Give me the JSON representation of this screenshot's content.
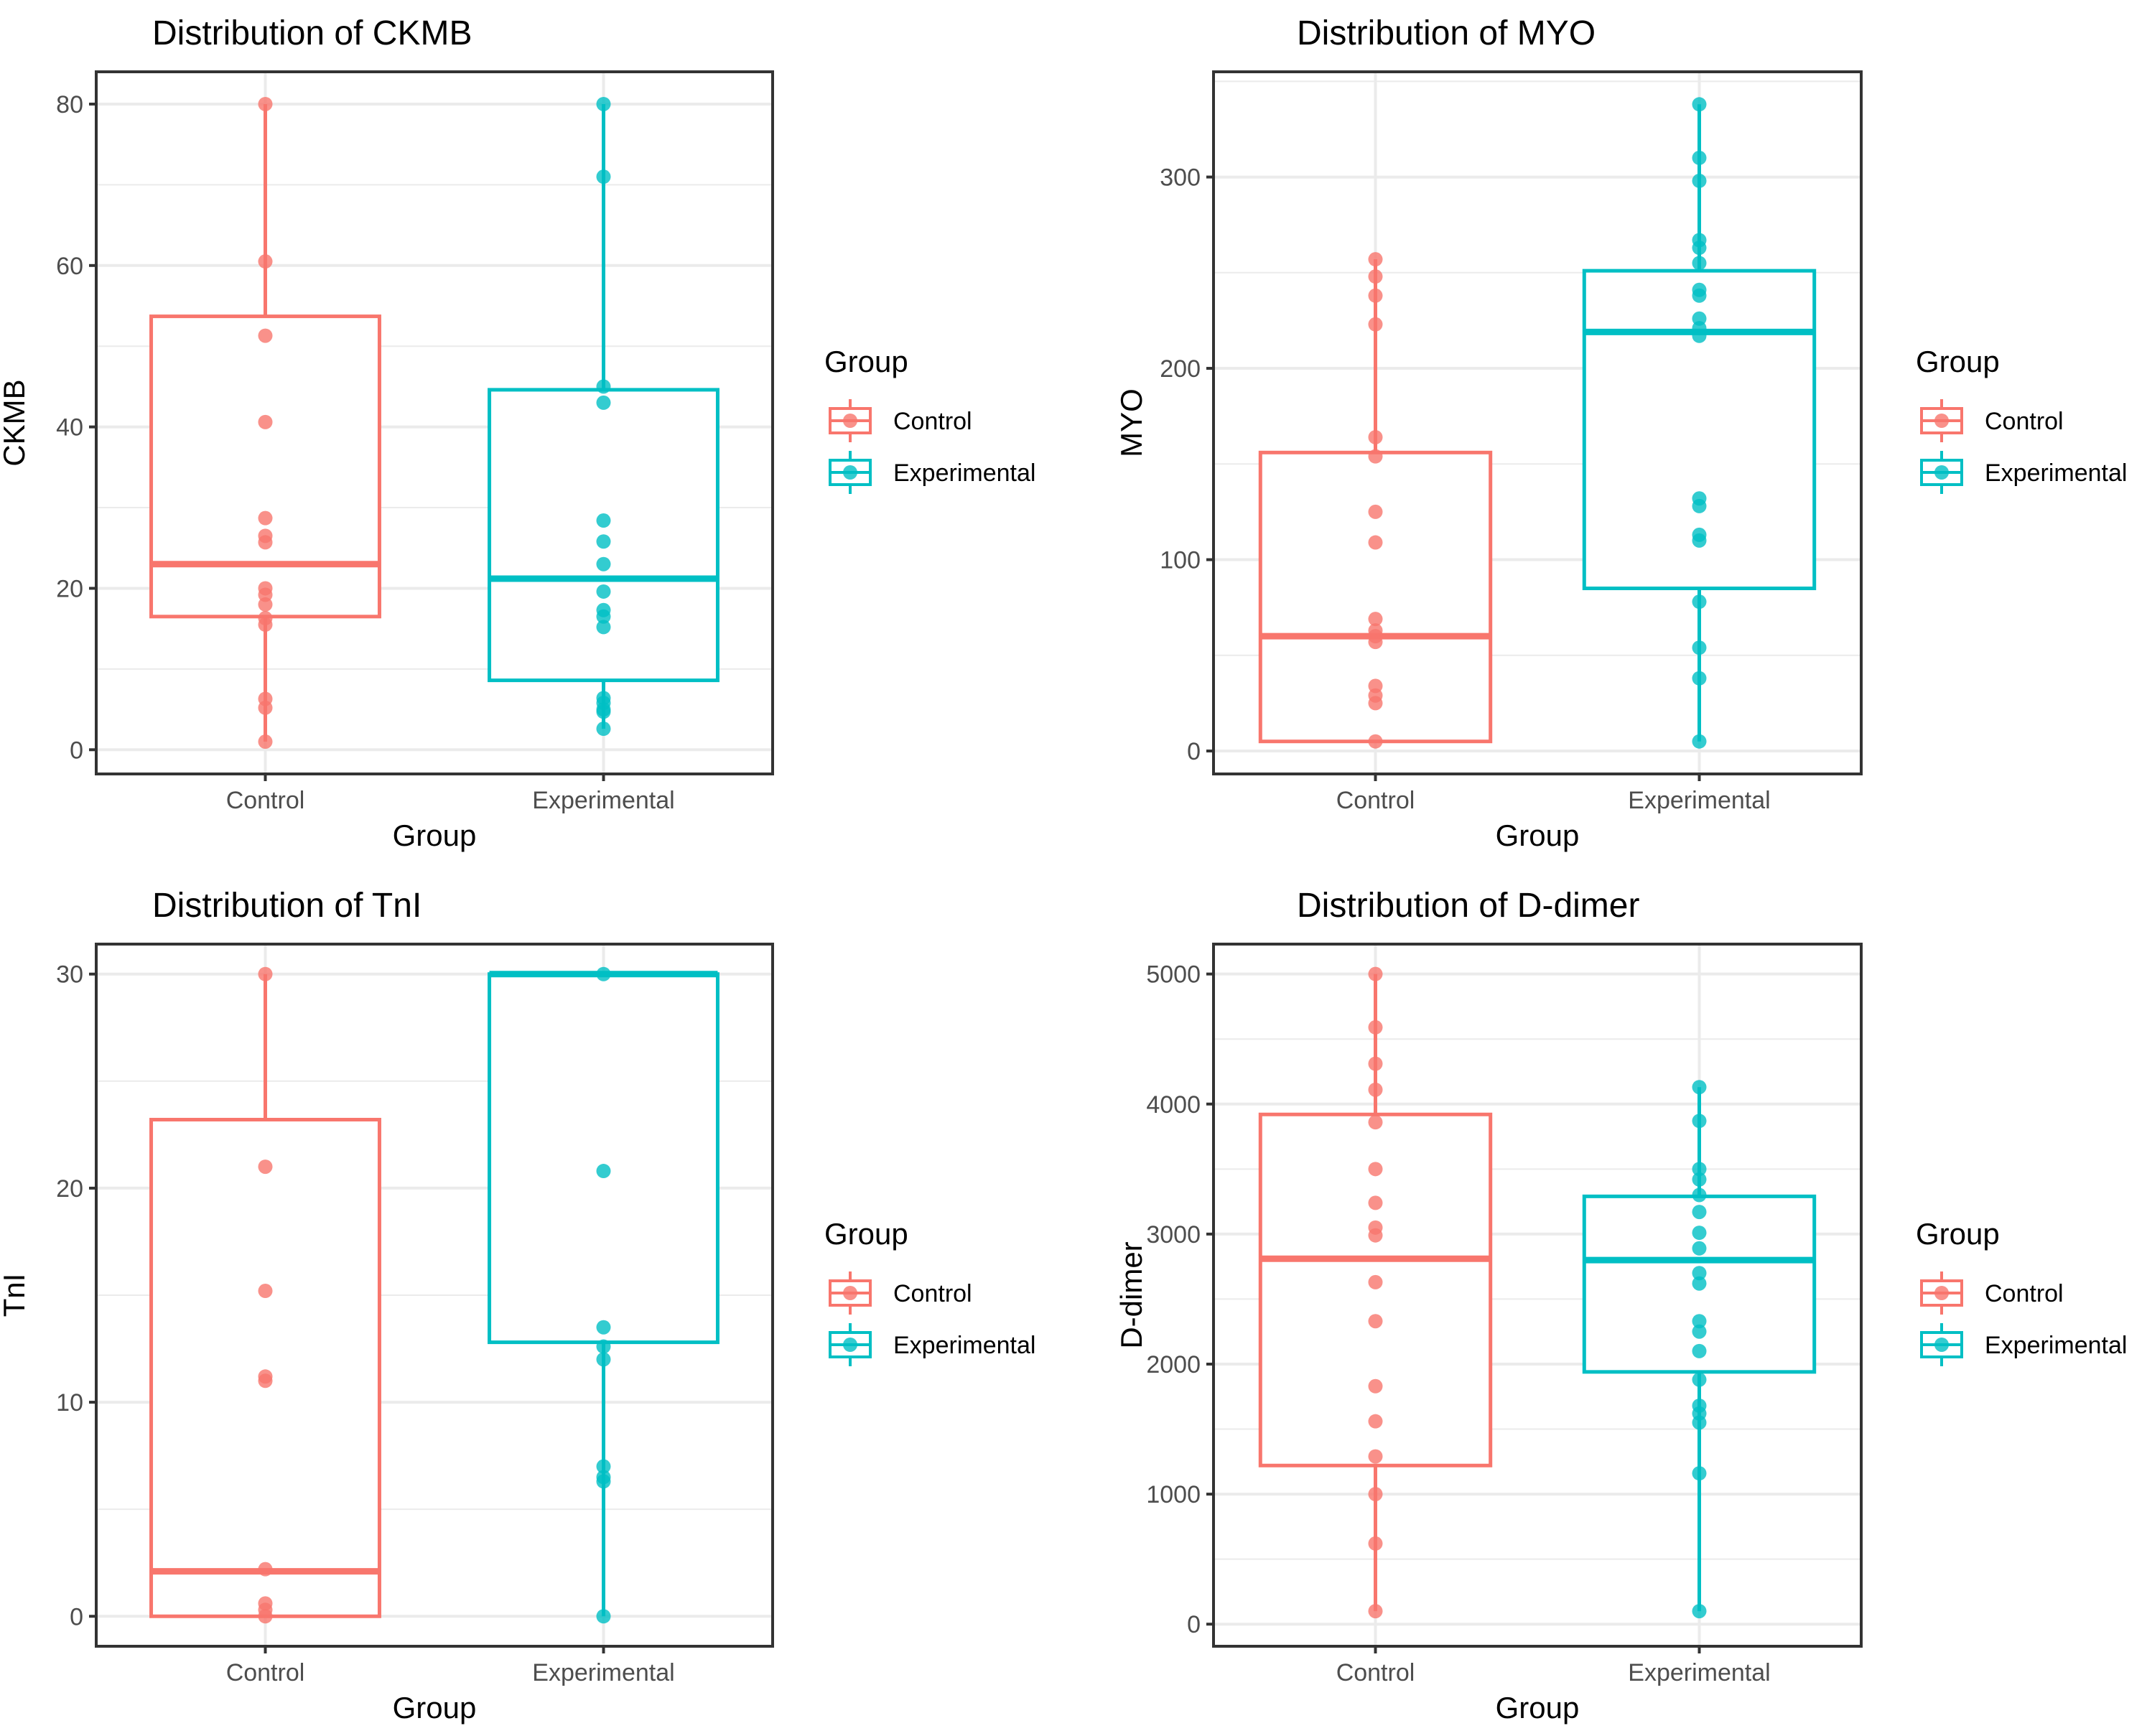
{
  "chart_data": [
    {
      "type": "boxplot",
      "title": "Distribution of  CKMB",
      "xlabel": "Group",
      "ylabel": "CKMB",
      "categories": [
        "Control",
        "Experimental"
      ],
      "ylim": [
        -3,
        84
      ],
      "yticks": [
        0,
        20,
        40,
        60,
        80
      ],
      "grid": true,
      "legend": {
        "title": "Group",
        "entries": [
          "Control",
          "Experimental"
        ],
        "position": "right"
      },
      "series": [
        {
          "name": "Control",
          "color": "#F8766D",
          "q1": 16.5,
          "median": 23,
          "q3": 53.7,
          "whisker_low": 1,
          "whisker_high": 80,
          "points": [
            80,
            60.5,
            51.3,
            40.6,
            28.7,
            26.5,
            25.7,
            20,
            19.2,
            18,
            16.3,
            15.5,
            6.3,
            5.2,
            1
          ]
        },
        {
          "name": "Experimental",
          "color": "#00BFC4",
          "q1": 8.6,
          "median": 21.2,
          "q3": 44.6,
          "whisker_low": 2.6,
          "whisker_high": 80,
          "points": [
            80,
            71,
            45,
            43,
            28.4,
            25.8,
            23,
            19.6,
            17.3,
            16.5,
            15.2,
            6.4,
            5.8,
            5,
            4.7,
            2.6
          ]
        }
      ]
    },
    {
      "type": "boxplot",
      "title": "Distribution of  MYO",
      "xlabel": "Group",
      "ylabel": "MYO",
      "categories": [
        "Control",
        "Experimental"
      ],
      "ylim": [
        -12,
        355
      ],
      "yticks": [
        0,
        100,
        200,
        300
      ],
      "grid": true,
      "legend": {
        "title": "Group",
        "entries": [
          "Control",
          "Experimental"
        ],
        "position": "right"
      },
      "series": [
        {
          "name": "Control",
          "color": "#F8766D",
          "q1": 5,
          "median": 60,
          "q3": 156,
          "whisker_low": 5,
          "whisker_high": 257,
          "points": [
            257,
            248,
            238,
            223,
            164,
            154,
            125,
            109,
            69,
            63,
            60,
            57,
            34,
            29,
            25,
            5
          ]
        },
        {
          "name": "Experimental",
          "color": "#00BFC4",
          "q1": 85,
          "median": 219,
          "q3": 251,
          "whisker_low": 5,
          "whisker_high": 338,
          "points": [
            338,
            310,
            298,
            267,
            263,
            255,
            241,
            238,
            226,
            221,
            217,
            132,
            128,
            113,
            110,
            78,
            54,
            38,
            5
          ]
        }
      ]
    },
    {
      "type": "boxplot",
      "title": "Distribution of  TnI",
      "xlabel": "Group",
      "ylabel": "TnI",
      "categories": [
        "Control",
        "Experimental"
      ],
      "ylim": [
        -1.4,
        31.4
      ],
      "yticks": [
        0,
        10,
        20,
        30
      ],
      "grid": true,
      "legend": {
        "title": "Group",
        "entries": [
          "Control",
          "Experimental"
        ],
        "position": "right"
      },
      "series": [
        {
          "name": "Control",
          "color": "#F8766D",
          "q1": 0,
          "median": 2.1,
          "q3": 23.2,
          "whisker_low": 0,
          "whisker_high": 30,
          "points": [
            30,
            21,
            15.2,
            11.2,
            11,
            2.2,
            0.6,
            0.3,
            0
          ]
        },
        {
          "name": "Experimental",
          "color": "#00BFC4",
          "q1": 12.8,
          "median": 30,
          "q3": 30,
          "whisker_low": 0,
          "whisker_high": 30,
          "points": [
            30,
            20.8,
            13.5,
            12.6,
            12,
            7,
            6.5,
            6.3,
            0
          ]
        }
      ]
    },
    {
      "type": "boxplot",
      "title": "Distribution of  D-dimer",
      "xlabel": "Group",
      "ylabel": "D-dimer",
      "categories": [
        "Control",
        "Experimental"
      ],
      "ylim": [
        -170,
        5230
      ],
      "yticks": [
        0,
        1000,
        2000,
        3000,
        4000,
        5000
      ],
      "grid": true,
      "legend": {
        "title": "Group",
        "entries": [
          "Control",
          "Experimental"
        ],
        "position": "right"
      },
      "series": [
        {
          "name": "Control",
          "color": "#F8766D",
          "q1": 1220,
          "median": 2810,
          "q3": 3920,
          "whisker_low": 100,
          "whisker_high": 5000,
          "points": [
            5000,
            4590,
            4310,
            4110,
            3860,
            3500,
            3240,
            3050,
            2990,
            2630,
            2330,
            1830,
            1560,
            1290,
            1000,
            620,
            100
          ]
        },
        {
          "name": "Experimental",
          "color": "#00BFC4",
          "q1": 1940,
          "median": 2800,
          "q3": 3290,
          "whisker_low": 100,
          "whisker_high": 4130,
          "points": [
            4130,
            3870,
            3500,
            3420,
            3300,
            3170,
            3010,
            2890,
            2700,
            2620,
            2330,
            2250,
            2100,
            1880,
            1680,
            1620,
            1550,
            1160,
            100
          ]
        }
      ]
    }
  ]
}
